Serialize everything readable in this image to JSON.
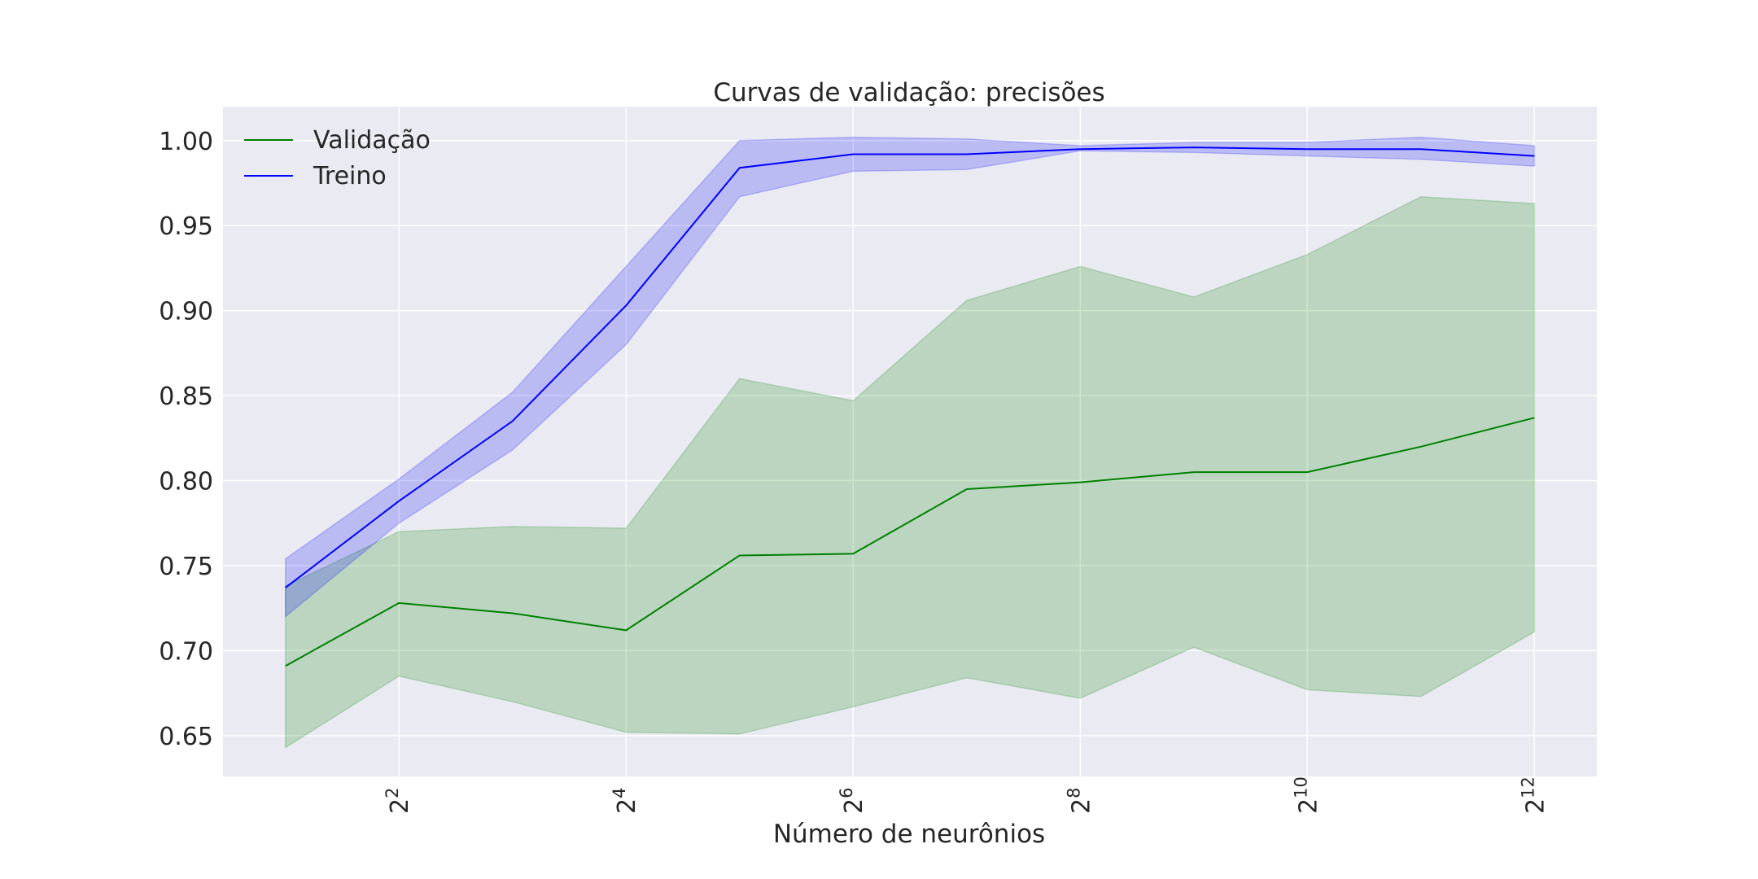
{
  "chart_data": {
    "type": "line",
    "title": "Curvas de validação: precisões",
    "xlabel": "Número de neurônios",
    "ylabel": "",
    "x_scale": "log2",
    "x": [
      2,
      4,
      8,
      16,
      32,
      64,
      128,
      256,
      512,
      1024,
      2048,
      4096
    ],
    "x_ticks": [
      {
        "value": 4,
        "base": "2",
        "exp": "2"
      },
      {
        "value": 16,
        "base": "2",
        "exp": "4"
      },
      {
        "value": 64,
        "base": "2",
        "exp": "6"
      },
      {
        "value": 256,
        "base": "2",
        "exp": "8"
      },
      {
        "value": 1024,
        "base": "2",
        "exp": "10"
      },
      {
        "value": 4096,
        "base": "2",
        "exp": "12"
      }
    ],
    "y_ticks": [
      "0.65",
      "0.70",
      "0.75",
      "0.80",
      "0.85",
      "0.90",
      "0.95",
      "1.00"
    ],
    "ylim": [
      0.626,
      1.02
    ],
    "grid": true,
    "legend_position": "top-left",
    "series": [
      {
        "name": "Validação",
        "color": "#008000",
        "fill_color": "#008000",
        "mean": [
          0.691,
          0.728,
          0.722,
          0.712,
          0.756,
          0.757,
          0.795,
          0.799,
          0.805,
          0.805,
          0.82,
          0.837
        ],
        "upper": [
          0.738,
          0.77,
          0.773,
          0.772,
          0.86,
          0.847,
          0.906,
          0.926,
          0.908,
          0.933,
          0.967,
          0.963
        ],
        "lower": [
          0.643,
          0.685,
          0.67,
          0.652,
          0.651,
          0.667,
          0.684,
          0.672,
          0.702,
          0.677,
          0.673,
          0.711
        ]
      },
      {
        "name": "Treino",
        "color": "#0000ff",
        "fill_color": "#0000ff",
        "mean": [
          0.737,
          0.788,
          0.835,
          0.903,
          0.984,
          0.992,
          0.992,
          0.995,
          0.996,
          0.995,
          0.995,
          0.991
        ],
        "upper": [
          0.754,
          0.801,
          0.852,
          0.926,
          1.0,
          1.002,
          1.001,
          0.997,
          0.999,
          0.999,
          1.002,
          0.997
        ],
        "lower": [
          0.72,
          0.775,
          0.818,
          0.88,
          0.967,
          0.982,
          0.983,
          0.994,
          0.993,
          0.991,
          0.989,
          0.985
        ]
      }
    ]
  }
}
